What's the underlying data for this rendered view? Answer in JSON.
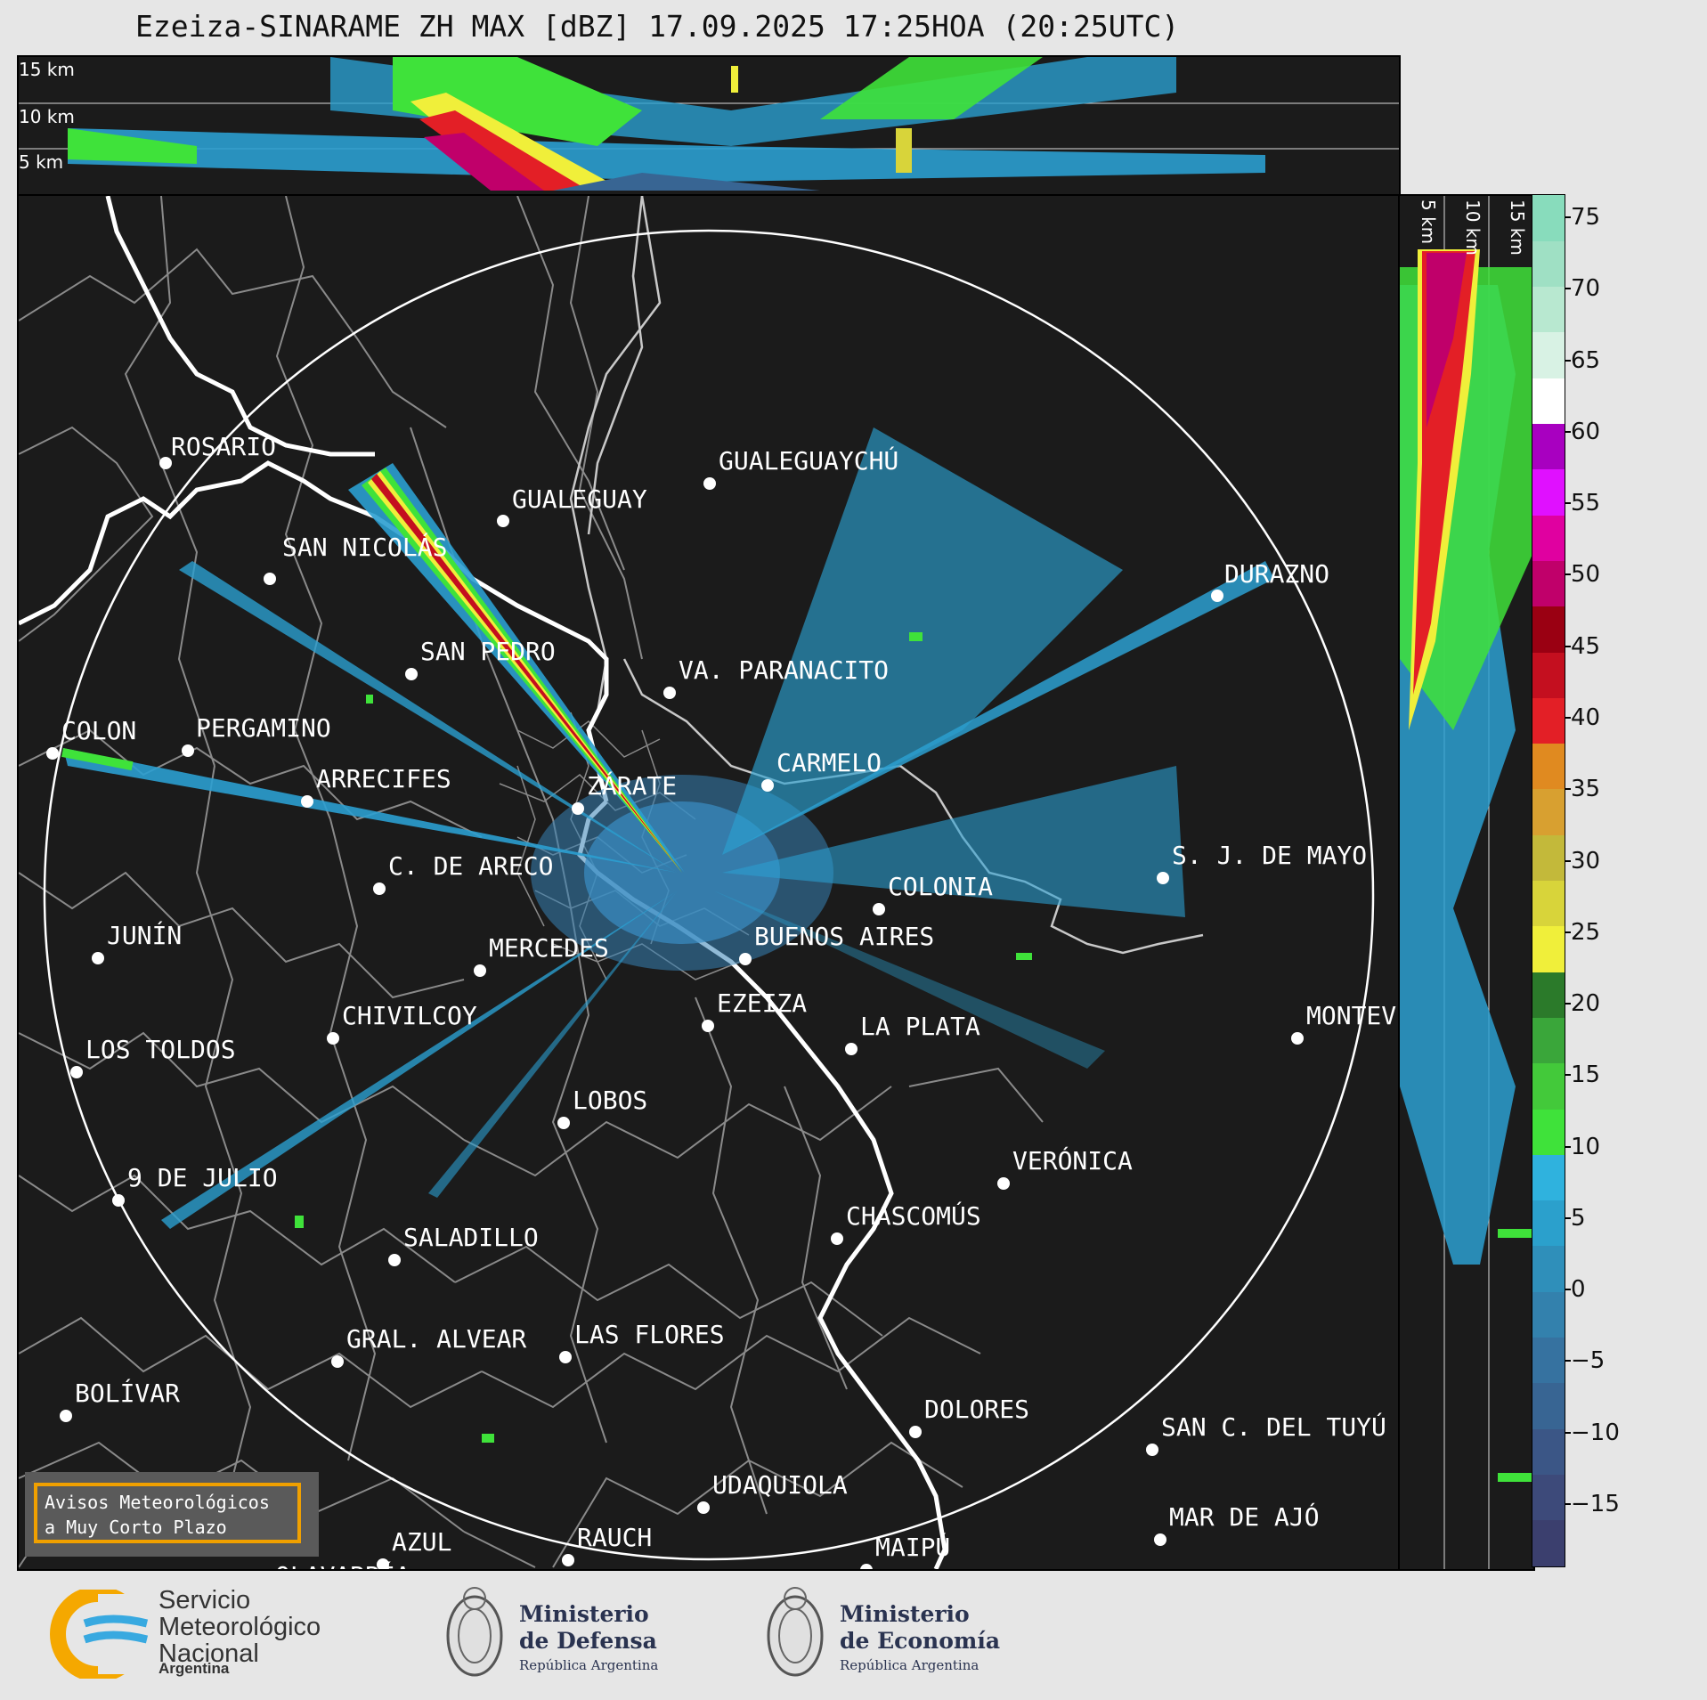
{
  "title": "Ezeiza-SINARAME ZH MAX [dBZ] 17.09.2025 17:25HOA (20:25UTC)",
  "top_panel": {
    "height_labels": [
      "15 km",
      "10 km",
      "5 km"
    ]
  },
  "right_panel": {
    "height_labels": [
      "5 km",
      "10 km",
      "15 km"
    ]
  },
  "colorbar": {
    "unit": "dBZ",
    "ticks": [
      "75",
      "70",
      "65",
      "60",
      "55",
      "50",
      "45",
      "40",
      "35",
      "30",
      "25",
      "20",
      "15",
      "10",
      "5",
      "0",
      "−5",
      "−10",
      "−15"
    ],
    "colors": [
      "#3b3f6e",
      "#3d4a7a",
      "#3b5686",
      "#386593",
      "#3672a0",
      "#3381ad",
      "#2f8fba",
      "#2ba0cc",
      "#2fb2de",
      "#3fe23a",
      "#43c93a",
      "#3aa63a",
      "#2b7a2a",
      "#f0ef3a",
      "#d8d43a",
      "#c3b93a",
      "#d8a030",
      "#e08a20",
      "#e31f26",
      "#c40f1f",
      "#9a0012",
      "#c0006a",
      "#e000a0",
      "#e010ff",
      "#a800c0",
      "#ffffff",
      "#d8f2e4",
      "#b8e8d0",
      "#9fe0c4",
      "#88dcbc"
    ]
  },
  "cities": [
    {
      "name": "ROSARIO"
    },
    {
      "name": "GUALEGUAYCHÚ"
    },
    {
      "name": "GUALEGUAY"
    },
    {
      "name": "SAN NICOLÁS"
    },
    {
      "name": "DURAZNO"
    },
    {
      "name": "SAN PEDRO"
    },
    {
      "name": "VA. PARANACITO"
    },
    {
      "name": "COLON"
    },
    {
      "name": "PERGAMINO"
    },
    {
      "name": "CARMELO"
    },
    {
      "name": "ARRECIFES"
    },
    {
      "name": "ZÁRATE"
    },
    {
      "name": "C. DE ARECO"
    },
    {
      "name": "S. J. DE MAYO"
    },
    {
      "name": "COLONIA"
    },
    {
      "name": "JUNÍN"
    },
    {
      "name": "MERCEDES"
    },
    {
      "name": "BUENOS AIRES"
    },
    {
      "name": "EZEIZA"
    },
    {
      "name": "MONTEV"
    },
    {
      "name": "CHIVILCOY"
    },
    {
      "name": "LA PLATA"
    },
    {
      "name": "LOS TOLDOS"
    },
    {
      "name": "LOBOS"
    },
    {
      "name": "VERÓNICA"
    },
    {
      "name": "9 DE JULIO"
    },
    {
      "name": "CHASCOMÚS"
    },
    {
      "name": "SALADILLO"
    },
    {
      "name": "GRAL. ALVEAR"
    },
    {
      "name": "LAS FLORES"
    },
    {
      "name": "BOLÍVAR"
    },
    {
      "name": "DOLORES"
    },
    {
      "name": "SAN C. DEL TUYÚ"
    },
    {
      "name": "UDAQUIOLA"
    },
    {
      "name": "MAR DE AJÓ"
    },
    {
      "name": "AZUL"
    },
    {
      "name": "RAUCH"
    },
    {
      "name": "OLAVARRÍA"
    },
    {
      "name": "MAIPÚ"
    }
  ],
  "warning_box": {
    "text": "Avisos Meteorológicos\na Muy Corto Plazo"
  },
  "logos": {
    "smn": {
      "line1": "Servicio",
      "line2": "Meteorológico",
      "line3": "Nacional",
      "sub": "Argentina"
    },
    "defensa": {
      "line1": "Ministerio",
      "line2": "de Defensa",
      "sub": "República Argentina"
    },
    "economia": {
      "line1": "Ministerio",
      "line2": "de Economía",
      "sub": "República Argentina"
    }
  }
}
